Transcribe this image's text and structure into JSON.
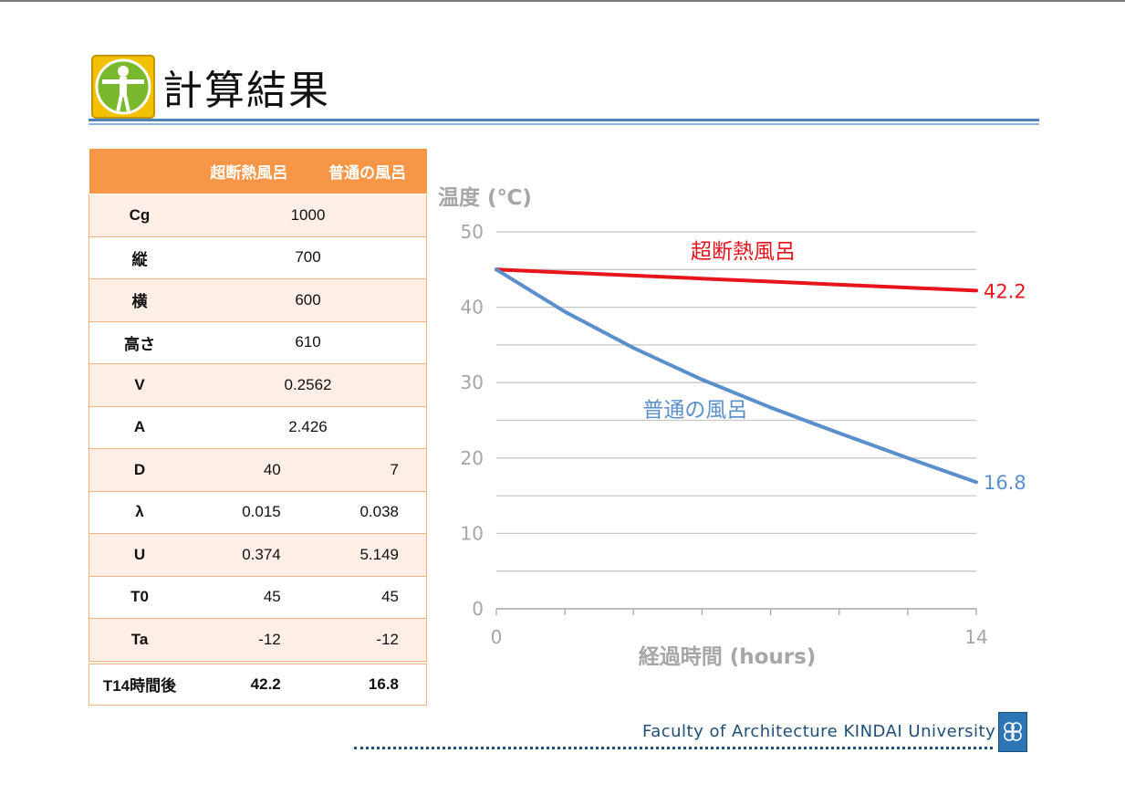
{
  "slide": {
    "title": "計算結果"
  },
  "table": {
    "headers": [
      "",
      "超断熱風呂",
      "普通の風呂"
    ],
    "rows": [
      {
        "label": "Cg",
        "shared": "1000"
      },
      {
        "label": "縦",
        "shared": "700"
      },
      {
        "label": "横",
        "shared": "600"
      },
      {
        "label": "高さ",
        "shared": "610"
      },
      {
        "label": "V",
        "shared": "0.2562"
      },
      {
        "label": "A",
        "shared": "2.426"
      },
      {
        "label": "D",
        "a": "40",
        "b": "7"
      },
      {
        "label": "λ",
        "a": "0.015",
        "b": "0.038"
      },
      {
        "label": "U",
        "a": "0.374",
        "b": "5.149"
      },
      {
        "label": "T0",
        "a": "45",
        "b": "45"
      },
      {
        "label": "Ta",
        "a": "-12",
        "b": "-12"
      }
    ],
    "total": {
      "label": "T14時間後",
      "a": "42.2",
      "b": "16.8"
    }
  },
  "chart_data": {
    "type": "line",
    "ylabel": "温度 (℃)",
    "xlabel": "経過時間 (hours)",
    "ylim": [
      0,
      50
    ],
    "xlim": [
      0,
      14
    ],
    "yticks": [
      0,
      10,
      20,
      30,
      40,
      50
    ],
    "xticks": [
      0,
      14
    ],
    "grid": true,
    "series": [
      {
        "name": "超断熱風呂",
        "color": "#e8141c",
        "x": [
          0,
          2,
          4,
          6,
          8,
          10,
          12,
          14
        ],
        "y": [
          45,
          44.6,
          44.2,
          43.8,
          43.4,
          43.0,
          42.6,
          42.2
        ],
        "end_label": "42.2"
      },
      {
        "name": "普通の風呂",
        "color": "#5b8fcc",
        "x": [
          0,
          2,
          4,
          6,
          8,
          10,
          12,
          14
        ],
        "y": [
          45,
          39.4,
          34.6,
          30.4,
          26.7,
          23.3,
          20.0,
          16.8
        ],
        "end_label": "16.8"
      }
    ]
  },
  "footer": {
    "text": "Faculty of Architecture  KINDAI University"
  },
  "icons": {
    "logo": "vitruvian-man-icon",
    "badge": "university-emblem-icon"
  }
}
